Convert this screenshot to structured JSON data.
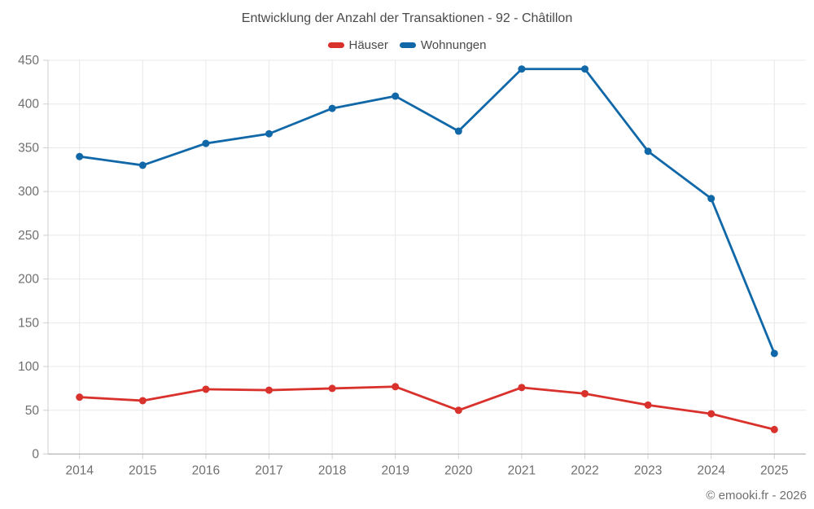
{
  "page": {
    "title": "Entwicklung der Anzahl der Transaktionen - 92 - Châtillon",
    "footer": "© emooki.fr - 2026"
  },
  "chart_data": {
    "type": "line",
    "title": "Entwicklung der Anzahl der Transaktionen - 92 - Châtillon",
    "categories": [
      "2014",
      "2015",
      "2016",
      "2017",
      "2018",
      "2019",
      "2020",
      "2021",
      "2022",
      "2023",
      "2024",
      "2025"
    ],
    "series": [
      {
        "name": "Häuser",
        "color": "#d9312b",
        "values": [
          65,
          61,
          74,
          73,
          75,
          77,
          50,
          76,
          69,
          56,
          46,
          28
        ]
      },
      {
        "name": "Wohnungen",
        "color": "#1168a8",
        "values": [
          340,
          330,
          355,
          366,
          395,
          409,
          369,
          440,
          440,
          346,
          292,
          115
        ]
      }
    ],
    "xlabel": "",
    "ylabel": "",
    "ylim": [
      0,
      450
    ],
    "ytick_step": 50,
    "grid": true,
    "legend_position": "top",
    "styles": {
      "grid_color": "#e8e8e8",
      "axis_line_color": "#a8a8a8",
      "tick_color": "#cfcfcf",
      "axis_text_color": "#6f6f6f"
    }
  }
}
